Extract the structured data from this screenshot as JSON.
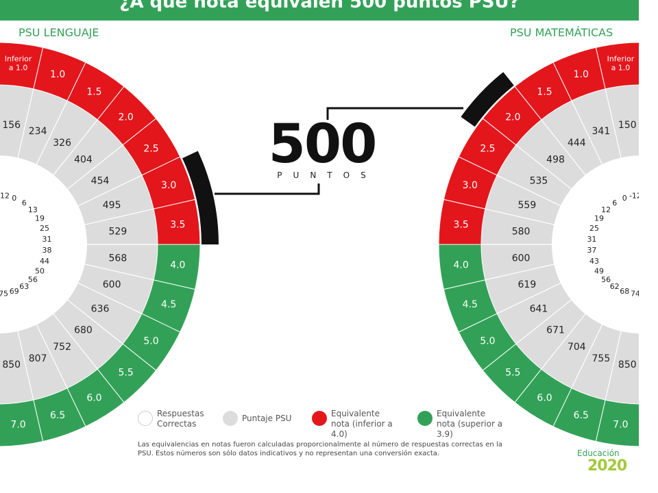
{
  "header": {
    "title": "¿A qué nota equivalen 500 puntos PSU?"
  },
  "lenguaje": {
    "label": "PSU LENGUAJE",
    "grades": [
      "Inferior a 1.0",
      "1.0",
      "1.5",
      "2.0",
      "2.5",
      "3.0",
      "3.5",
      "4.0",
      "4.5",
      "5.0",
      "5.5",
      "6.0",
      "6.5",
      "7.0"
    ],
    "scores": [
      "156",
      "234",
      "326",
      "404",
      "454",
      "495",
      "529",
      "568",
      "600",
      "636",
      "680",
      "752",
      "807",
      "850"
    ],
    "answers": [
      "-12",
      "0",
      "6",
      "13",
      "19",
      "25",
      "31",
      "38",
      "44",
      "50",
      "56",
      "63",
      "69",
      "75"
    ]
  },
  "matematicas": {
    "label": "PSU MATEMÁTICAS",
    "grades": [
      "Inferior a 1.0",
      "1.0",
      "1.5",
      "2.0",
      "2.5",
      "3.0",
      "3.5",
      "4.0",
      "4.5",
      "5.0",
      "5.5",
      "6.0",
      "6.5",
      "7.0"
    ],
    "scores": [
      "150",
      "341",
      "444",
      "498",
      "535",
      "559",
      "580",
      "600",
      "619",
      "641",
      "671",
      "704",
      "755",
      "850"
    ],
    "answers": [
      "-12",
      "0",
      "6",
      "12",
      "19",
      "25",
      "31",
      "37",
      "43",
      "49",
      "56",
      "62",
      "68",
      "74"
    ]
  },
  "center": {
    "number": "500",
    "word": "PUNTOS"
  },
  "legend": {
    "correct": "Respuestas Correctas",
    "score": "Puntaje PSU",
    "red": "Equivalente nota (inferior a 4.0)",
    "green": "Equivalente nota (superior a 3.9)"
  },
  "footnote": "Las equivalencias en notas fueron calculadas proporcionalmente al número de respuestas correctas en la PSU. Estos números son sólo datos indicativos y no representan una conversión exacta.",
  "logo": {
    "top": "Educación",
    "bottom": "2020"
  },
  "colors": {
    "red": "#e3161c",
    "green": "#32a157",
    "gray": "#dcdcdc",
    "black": "#111111",
    "logo_lime": "#a3c93a"
  }
}
